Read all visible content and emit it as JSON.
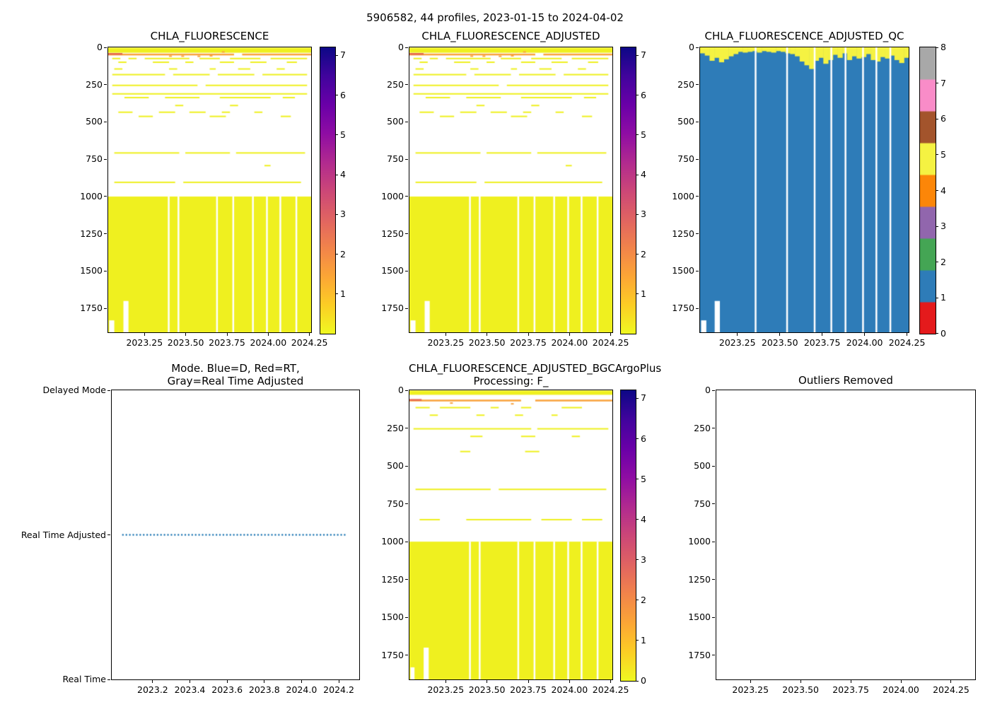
{
  "figure": {
    "suptitle": "5906582, 44 profiles, 2023-01-15 to 2024-04-02"
  },
  "palette": {
    "yellow": "#eff01f",
    "orange": "#f9a23c",
    "red_orange": "#e6684f",
    "qc_blue": "#2e7cb8",
    "qc_yellow": "#f5f242",
    "mode_dot_blue": "#1f77b4",
    "axis_color": "#000000",
    "background": "#ffffff"
  },
  "fluor_colorbar": {
    "stops_top_to_bottom": [
      "#0d0887",
      "#41049d",
      "#6a00a8",
      "#8f0da4",
      "#b12a90",
      "#cc4778",
      "#e16462",
      "#f2844b",
      "#fca636",
      "#fcce25",
      "#f0f921"
    ]
  },
  "qc_colorbar": {
    "colors_bottom_to_top": [
      "#e41a1c",
      "#2e7cb8",
      "#44a554",
      "#9166ad",
      "#fc8608",
      "#f5f242",
      "#a3542c",
      "#f98cc8",
      "#a8a8a8"
    ]
  },
  "chart_data": [
    {
      "id": "chla_fluorescence",
      "type": "heatmap",
      "title": "CHLA_FLUORESCENCE",
      "x_range": [
        2023.03,
        2024.26
      ],
      "x_ticks": [
        2023.25,
        2023.5,
        2023.75,
        2024.0,
        2024.25
      ],
      "x_tick_labels": [
        "2023.25",
        "2023.50",
        "2023.75",
        "2024.00",
        "2024.25"
      ],
      "depth_range": [
        0,
        1910
      ],
      "y_ticks": [
        0,
        250,
        500,
        750,
        1000,
        1250,
        1500,
        1750
      ],
      "colorbar": {
        "kind": "fluorescence",
        "ticks": [
          1,
          2,
          3,
          4,
          5,
          6,
          7
        ],
        "vmin": 0,
        "vmax": 7.2
      },
      "surface_band": {
        "top": 2,
        "bottom": 36
      },
      "orange_line": {
        "depth": 42,
        "segs": [
          [
            0.0,
            0.62
          ],
          [
            0.66,
            1.0
          ]
        ]
      },
      "red_segment": {
        "depth": 38,
        "x0": 0.0,
        "x1": 0.07
      },
      "orange_specks": [
        [
          0.3,
          54
        ],
        [
          0.36,
          54
        ],
        [
          0.44,
          55
        ],
        [
          0.5,
          52
        ],
        [
          0.56,
          26
        ]
      ],
      "streaks": [
        {
          "depth": 70,
          "segs": [
            [
              0.02,
              0.06
            ],
            [
              0.1,
              0.14
            ],
            [
              0.18,
              0.4
            ],
            [
              0.45,
              0.55
            ],
            [
              0.6,
              0.75
            ],
            [
              0.8,
              0.98
            ]
          ]
        },
        {
          "depth": 95,
          "segs": [
            [
              0.05,
              0.09
            ],
            [
              0.22,
              0.3
            ],
            [
              0.38,
              0.42
            ],
            [
              0.55,
              0.62
            ],
            [
              0.7,
              0.78
            ],
            [
              0.88,
              0.93
            ]
          ]
        },
        {
          "depth": 140,
          "segs": [
            [
              0.03,
              0.07
            ],
            [
              0.3,
              0.34
            ],
            [
              0.5,
              0.53
            ],
            [
              0.64,
              0.7
            ],
            [
              0.83,
              0.87
            ]
          ]
        },
        {
          "depth": 178,
          "segs": [
            [
              0.02,
              0.28
            ],
            [
              0.32,
              0.5
            ],
            [
              0.54,
              0.72
            ],
            [
              0.76,
              0.98
            ]
          ]
        },
        {
          "depth": 250,
          "segs": [
            [
              0.02,
              0.44
            ],
            [
              0.48,
              0.98
            ]
          ]
        },
        {
          "depth": 307,
          "segs": [
            [
              0.02,
              0.98
            ]
          ]
        },
        {
          "depth": 332,
          "segs": [
            [
              0.08,
              0.2
            ],
            [
              0.28,
              0.45
            ],
            [
              0.55,
              0.8
            ],
            [
              0.86,
              0.92
            ]
          ]
        },
        {
          "depth": 385,
          "segs": [
            [
              0.33,
              0.37
            ],
            [
              0.6,
              0.64
            ]
          ]
        },
        {
          "depth": 430,
          "segs": [
            [
              0.05,
              0.12
            ],
            [
              0.25,
              0.33
            ],
            [
              0.4,
              0.48
            ],
            [
              0.56,
              0.6
            ],
            [
              0.72,
              0.76
            ]
          ]
        },
        {
          "depth": 458,
          "segs": [
            [
              0.15,
              0.22
            ],
            [
              0.5,
              0.58
            ],
            [
              0.85,
              0.9
            ]
          ]
        },
        {
          "depth": 703,
          "segs": [
            [
              0.03,
              0.35
            ],
            [
              0.38,
              0.6
            ],
            [
              0.63,
              0.97
            ]
          ]
        },
        {
          "depth": 788,
          "segs": [
            [
              0.77,
              0.8
            ]
          ]
        },
        {
          "depth": 900,
          "segs": [
            [
              0.03,
              0.33
            ],
            [
              0.37,
              0.95
            ]
          ]
        }
      ],
      "solid_block": {
        "top": 1000,
        "bottom": 1910
      },
      "gap_fractions": [
        0.298,
        0.346,
        0.536,
        0.616,
        0.713,
        0.782,
        0.848,
        0.927
      ],
      "bottom_notches": [
        {
          "x0": 0.005,
          "x1": 0.03,
          "top": 1830
        },
        {
          "x0": 0.075,
          "x1": 0.1,
          "top": 1700
        }
      ]
    },
    {
      "id": "chla_fluorescence_adjusted",
      "type": "heatmap",
      "title": "CHLA_FLUORESCENCE_ADJUSTED",
      "x_range": [
        2023.03,
        2024.26
      ],
      "x_ticks": [
        2023.25,
        2023.5,
        2023.75,
        2024.0,
        2024.25
      ],
      "x_tick_labels": [
        "2023.25",
        "2023.50",
        "2023.75",
        "2024.00",
        "2024.25"
      ],
      "depth_range": [
        0,
        1910
      ],
      "y_ticks": [
        0,
        250,
        500,
        750,
        1000,
        1250,
        1500,
        1750
      ],
      "colorbar": {
        "kind": "fluorescence",
        "ticks": [
          1,
          2,
          3,
          4,
          5,
          6,
          7
        ],
        "vmin": 0,
        "vmax": 7.2
      },
      "surface_band": {
        "top": 2,
        "bottom": 36
      },
      "orange_line": {
        "depth": 42,
        "segs": [
          [
            0.0,
            0.62
          ],
          [
            0.66,
            1.0
          ]
        ]
      },
      "red_segment": {
        "depth": 38,
        "x0": 0.0,
        "x1": 0.07
      },
      "orange_specks": [
        [
          0.3,
          54
        ],
        [
          0.36,
          54
        ],
        [
          0.44,
          55
        ],
        [
          0.5,
          52
        ],
        [
          0.56,
          26
        ]
      ],
      "streaks": [
        {
          "depth": 70,
          "segs": [
            [
              0.02,
              0.06
            ],
            [
              0.1,
              0.14
            ],
            [
              0.18,
              0.4
            ],
            [
              0.45,
              0.55
            ],
            [
              0.6,
              0.75
            ],
            [
              0.8,
              0.98
            ]
          ]
        },
        {
          "depth": 95,
          "segs": [
            [
              0.05,
              0.09
            ],
            [
              0.22,
              0.3
            ],
            [
              0.38,
              0.42
            ],
            [
              0.55,
              0.62
            ],
            [
              0.7,
              0.78
            ],
            [
              0.88,
              0.93
            ]
          ]
        },
        {
          "depth": 140,
          "segs": [
            [
              0.03,
              0.07
            ],
            [
              0.3,
              0.34
            ],
            [
              0.5,
              0.53
            ],
            [
              0.64,
              0.7
            ],
            [
              0.83,
              0.87
            ]
          ]
        },
        {
          "depth": 178,
          "segs": [
            [
              0.02,
              0.28
            ],
            [
              0.32,
              0.5
            ],
            [
              0.54,
              0.72
            ],
            [
              0.76,
              0.98
            ]
          ]
        },
        {
          "depth": 250,
          "segs": [
            [
              0.02,
              0.44
            ],
            [
              0.48,
              0.98
            ]
          ]
        },
        {
          "depth": 307,
          "segs": [
            [
              0.02,
              0.98
            ]
          ]
        },
        {
          "depth": 332,
          "segs": [
            [
              0.08,
              0.2
            ],
            [
              0.28,
              0.45
            ],
            [
              0.55,
              0.8
            ],
            [
              0.86,
              0.92
            ]
          ]
        },
        {
          "depth": 385,
          "segs": [
            [
              0.33,
              0.37
            ],
            [
              0.6,
              0.64
            ]
          ]
        },
        {
          "depth": 430,
          "segs": [
            [
              0.05,
              0.12
            ],
            [
              0.25,
              0.33
            ],
            [
              0.4,
              0.48
            ],
            [
              0.56,
              0.6
            ],
            [
              0.72,
              0.76
            ]
          ]
        },
        {
          "depth": 458,
          "segs": [
            [
              0.15,
              0.22
            ],
            [
              0.5,
              0.58
            ],
            [
              0.85,
              0.9
            ]
          ]
        },
        {
          "depth": 703,
          "segs": [
            [
              0.03,
              0.35
            ],
            [
              0.38,
              0.6
            ],
            [
              0.63,
              0.97
            ]
          ]
        },
        {
          "depth": 788,
          "segs": [
            [
              0.77,
              0.8
            ]
          ]
        },
        {
          "depth": 900,
          "segs": [
            [
              0.03,
              0.33
            ],
            [
              0.37,
              0.95
            ]
          ]
        }
      ],
      "solid_block": {
        "top": 1000,
        "bottom": 1910
      },
      "gap_fractions": [
        0.298,
        0.346,
        0.536,
        0.616,
        0.713,
        0.782,
        0.848,
        0.927
      ],
      "bottom_notches": [
        {
          "x0": 0.005,
          "x1": 0.03,
          "top": 1830
        },
        {
          "x0": 0.075,
          "x1": 0.1,
          "top": 1700
        }
      ]
    },
    {
      "id": "chla_fluorescence_adjusted_qc",
      "type": "qc_heatmap",
      "title": "CHLA_FLUORESCENCE_ADJUSTED_QC",
      "x_range": [
        2023.03,
        2024.26
      ],
      "x_ticks": [
        2023.25,
        2023.5,
        2023.75,
        2024.0,
        2024.25
      ],
      "x_tick_labels": [
        "2023.25",
        "2023.50",
        "2023.75",
        "2024.00",
        "2024.25"
      ],
      "depth_range": [
        0,
        1910
      ],
      "y_ticks": [
        0,
        250,
        500,
        750,
        1000,
        1250,
        1500,
        1750
      ],
      "colorbar": {
        "kind": "qc",
        "ticks": [
          0,
          1,
          2,
          3,
          4,
          5,
          6,
          7,
          8
        ]
      },
      "fill_depth": 1910,
      "surface_yellow_depths": [
        40,
        55,
        90,
        70,
        100,
        80,
        60,
        45,
        30,
        35,
        30,
        25,
        35,
        25,
        30,
        35,
        25,
        30,
        40,
        45,
        60,
        95,
        120,
        145,
        90,
        70,
        110,
        85,
        50,
        70,
        40,
        85,
        60,
        75,
        65,
        45,
        85,
        95,
        65,
        75,
        55,
        85,
        105,
        70
      ],
      "gap_fractions": [
        0.266,
        0.417,
        0.549,
        0.629,
        0.697,
        0.781,
        0.845,
        0.912
      ],
      "bottom_notches": [
        {
          "x0": 0.005,
          "x1": 0.03,
          "top": 1830
        },
        {
          "x0": 0.07,
          "x1": 0.095,
          "top": 1700
        }
      ]
    },
    {
      "id": "mode",
      "type": "categorical_line",
      "title_lines": [
        "Mode. Blue=D, Red=RT,",
        "Gray=Real Time Adjusted"
      ],
      "x_range": [
        2022.98,
        2024.31
      ],
      "x_ticks": [
        2023.2,
        2023.4,
        2023.6,
        2023.8,
        2024.0,
        2024.2
      ],
      "x_tick_labels": [
        "2023.2",
        "2023.4",
        "2023.6",
        "2023.8",
        "2024.0",
        "2024.2"
      ],
      "y_categories": [
        "Delayed Mode",
        "Real Time Adjusted",
        "Real Time"
      ],
      "line": {
        "category": "Real Time Adjusted",
        "category_index": 1,
        "style": "dotted",
        "x_span": [
          2023.04,
          2024.25
        ]
      }
    },
    {
      "id": "chla_fluorescence_adjusted_bgcargoplus",
      "type": "heatmap",
      "title_lines": [
        "CHLA_FLUORESCENCE_ADJUSTED_BGCArgoPlus",
        "Processing: F_"
      ],
      "x_range": [
        2023.03,
        2024.26
      ],
      "x_ticks": [
        2023.25,
        2023.5,
        2023.75,
        2024.0,
        2024.25
      ],
      "x_tick_labels": [
        "2023.25",
        "2023.50",
        "2023.75",
        "2024.00",
        "2024.25"
      ],
      "depth_range": [
        0,
        1910
      ],
      "y_ticks": [
        0,
        250,
        500,
        750,
        1000,
        1250,
        1500,
        1750
      ],
      "colorbar": {
        "kind": "fluorescence",
        "ticks": [
          0,
          1,
          2,
          3,
          4,
          5,
          6,
          7
        ],
        "vmin": 0,
        "vmax": 7.2
      },
      "surface_band": {
        "top": 2,
        "bottom": 30
      },
      "orange_line": {
        "depth": 62,
        "segs": [
          [
            0.0,
            0.55
          ],
          [
            0.62,
            1.0
          ]
        ]
      },
      "red_segment": {
        "depth": 58,
        "x0": 0.0,
        "x1": 0.06
      },
      "orange_specks": [
        [
          0.2,
          80
        ],
        [
          0.5,
          85
        ]
      ],
      "streaks": [
        {
          "depth": 110,
          "segs": [
            [
              0.03,
              0.1
            ],
            [
              0.15,
              0.3
            ],
            [
              0.4,
              0.44
            ],
            [
              0.55,
              0.6
            ],
            [
              0.75,
              0.85
            ]
          ]
        },
        {
          "depth": 160,
          "segs": [
            [
              0.1,
              0.14
            ],
            [
              0.33,
              0.37
            ],
            [
              0.52,
              0.56
            ],
            [
              0.7,
              0.73
            ]
          ]
        },
        {
          "depth": 250,
          "segs": [
            [
              0.02,
              0.6
            ],
            [
              0.63,
              0.98
            ]
          ]
        },
        {
          "depth": 300,
          "segs": [
            [
              0.3,
              0.36
            ],
            [
              0.55,
              0.62
            ],
            [
              0.8,
              0.84
            ]
          ]
        },
        {
          "depth": 400,
          "segs": [
            [
              0.25,
              0.3
            ],
            [
              0.57,
              0.64
            ]
          ]
        },
        {
          "depth": 650,
          "segs": [
            [
              0.03,
              0.4
            ],
            [
              0.44,
              0.97
            ]
          ]
        },
        {
          "depth": 850,
          "segs": [
            [
              0.05,
              0.15
            ],
            [
              0.28,
              0.6
            ],
            [
              0.65,
              0.8
            ],
            [
              0.85,
              0.95
            ]
          ]
        }
      ],
      "solid_block": {
        "top": 1000,
        "bottom": 1910
      },
      "gap_fractions": [
        0.298,
        0.346,
        0.536,
        0.616,
        0.713,
        0.782,
        0.848,
        0.927
      ],
      "bottom_notches": [
        {
          "x0": 0.005,
          "x1": 0.025,
          "top": 1830
        },
        {
          "x0": 0.07,
          "x1": 0.095,
          "top": 1700
        }
      ]
    },
    {
      "id": "outliers_removed",
      "type": "empty",
      "title": "Outliers Removed",
      "x_range": [
        2023.08,
        2024.37
      ],
      "x_ticks": [
        2023.25,
        2023.5,
        2023.75,
        2024.0,
        2024.25
      ],
      "x_tick_labels": [
        "2023.25",
        "2023.50",
        "2023.75",
        "2024.00",
        "2024.25"
      ],
      "depth_range": [
        0,
        1910
      ],
      "y_ticks": [
        0,
        250,
        500,
        750,
        1000,
        1250,
        1500,
        1750
      ]
    }
  ]
}
